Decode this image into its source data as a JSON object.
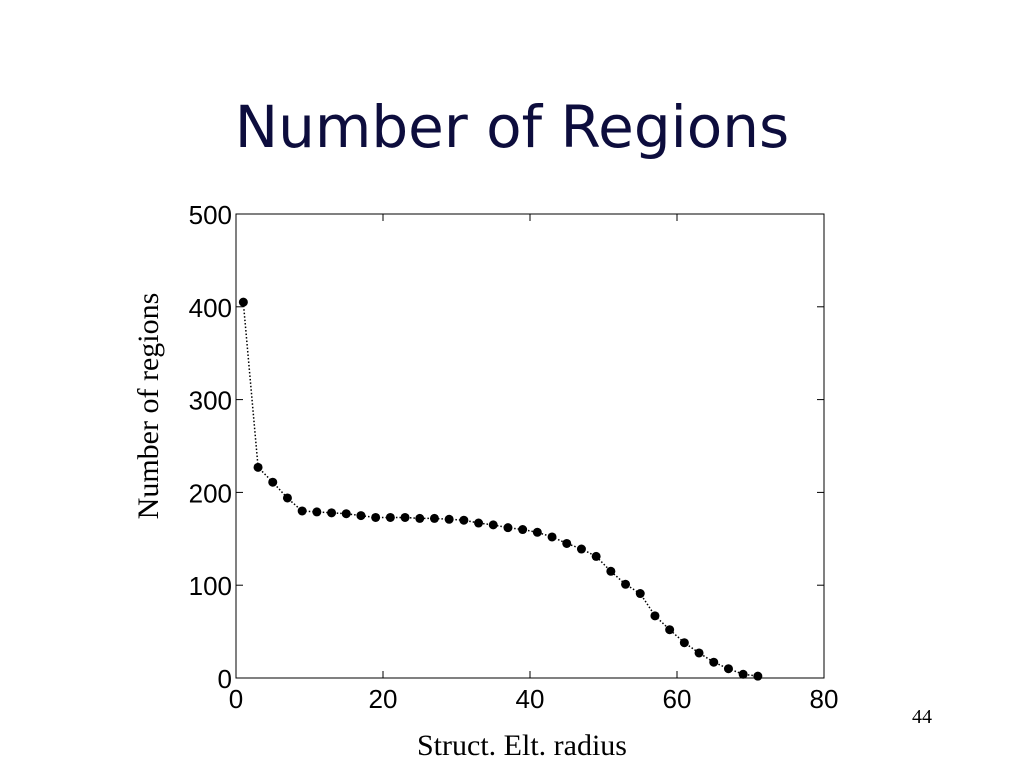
{
  "slide": {
    "title": "Number of Regions",
    "page_number": "44"
  },
  "chart_data": {
    "type": "line",
    "title": "",
    "xlabel": "Struct. Elt. radius",
    "ylabel": "Number of regions",
    "xlim": [
      0,
      80
    ],
    "ylim": [
      0,
      500
    ],
    "xticks": [
      0,
      20,
      40,
      60,
      80
    ],
    "yticks": [
      0,
      100,
      200,
      300,
      400,
      500
    ],
    "grid": false,
    "legend": "none",
    "line_style": "dotted",
    "marker": "filled-circle",
    "color": "#000000",
    "series": [
      {
        "x": [
          1,
          3,
          5,
          7,
          9,
          11,
          13,
          15,
          17,
          19,
          21,
          23,
          25,
          27,
          29,
          31,
          33,
          35,
          37,
          39,
          41,
          43,
          45,
          47,
          49,
          51,
          53,
          55,
          57,
          59,
          61,
          63,
          65,
          67,
          69,
          71
        ],
        "values": [
          405,
          227,
          211,
          194,
          180,
          179,
          178,
          177,
          175,
          173,
          173,
          173,
          172,
          172,
          171,
          170,
          167,
          165,
          162,
          160,
          157,
          152,
          145,
          139,
          131,
          115,
          101,
          91,
          67,
          52,
          38,
          27,
          17,
          10,
          4,
          2
        ]
      }
    ]
  }
}
